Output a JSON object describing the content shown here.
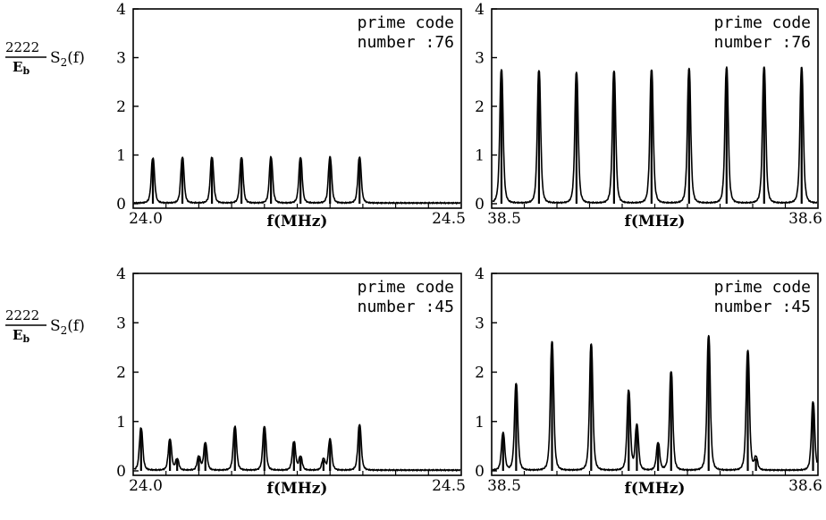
{
  "figure": {
    "ylabel": {
      "numerator": "2222",
      "denominator_main": "E",
      "denominator_sub": "b",
      "function_main": "S",
      "function_sub": "2",
      "function_arg": "(f)"
    }
  },
  "chart_data": [
    {
      "type": "line",
      "annotation": [
        "prime code",
        "number :76"
      ],
      "xlabel": "f(MHz)",
      "xlim": [
        24.0,
        24.5
      ],
      "xtick_labels": [
        "24.0",
        "24.5"
      ],
      "ylim": [
        0,
        4
      ],
      "yticks": [
        "0",
        "1",
        "2",
        "3",
        "4"
      ],
      "grid": false,
      "peaks": [
        {
          "x": 24.03,
          "y": 0.92
        },
        {
          "x": 24.075,
          "y": 0.93
        },
        {
          "x": 24.12,
          "y": 0.94
        },
        {
          "x": 24.165,
          "y": 0.93
        },
        {
          "x": 24.21,
          "y": 0.94
        },
        {
          "x": 24.255,
          "y": 0.93
        },
        {
          "x": 24.3,
          "y": 0.94
        },
        {
          "x": 24.345,
          "y": 0.94
        }
      ]
    },
    {
      "type": "line",
      "annotation": [
        "prime code",
        "number :76"
      ],
      "xlabel": "f(MHz)",
      "xlim": [
        38.5,
        38.6
      ],
      "xtick_labels": [
        "38.5",
        "38.6"
      ],
      "ylim": [
        0,
        4
      ],
      "yticks": [
        "0",
        "1",
        "2",
        "3",
        "4"
      ],
      "grid": false,
      "peaks": [
        {
          "x": 38.503,
          "y": 2.73
        },
        {
          "x": 38.5145,
          "y": 2.72
        },
        {
          "x": 38.526,
          "y": 2.68
        },
        {
          "x": 38.5375,
          "y": 2.71
        },
        {
          "x": 38.549,
          "y": 2.74
        },
        {
          "x": 38.5605,
          "y": 2.76
        },
        {
          "x": 38.572,
          "y": 2.78
        },
        {
          "x": 38.5835,
          "y": 2.79
        },
        {
          "x": 38.595,
          "y": 2.78
        }
      ]
    },
    {
      "type": "line",
      "annotation": [
        "prime code",
        "number :45"
      ],
      "xlabel": "f(MHz)",
      "xlim": [
        24.0,
        24.5
      ],
      "xtick_labels": [
        "24.0",
        "24.5"
      ],
      "ylim": [
        0,
        4
      ],
      "yticks": [
        "0",
        "1",
        "2",
        "3",
        "4"
      ],
      "grid": false,
      "peaks": [
        {
          "x": 24.012,
          "y": 0.85
        },
        {
          "x": 24.056,
          "y": 0.62
        },
        {
          "x": 24.067,
          "y": 0.22
        },
        {
          "x": 24.1,
          "y": 0.27
        },
        {
          "x": 24.11,
          "y": 0.55
        },
        {
          "x": 24.155,
          "y": 0.88
        },
        {
          "x": 24.2,
          "y": 0.88
        },
        {
          "x": 24.245,
          "y": 0.57
        },
        {
          "x": 24.255,
          "y": 0.27
        },
        {
          "x": 24.29,
          "y": 0.22
        },
        {
          "x": 24.3,
          "y": 0.62
        },
        {
          "x": 24.345,
          "y": 0.92
        }
      ]
    },
    {
      "type": "line",
      "annotation": [
        "prime code",
        "number :45"
      ],
      "xlabel": "f(MHz)",
      "xlim": [
        38.5,
        38.6
      ],
      "xtick_labels": [
        "38.5",
        "38.6"
      ],
      "ylim": [
        0,
        4
      ],
      "yticks": [
        "0",
        "1",
        "2",
        "3",
        "4"
      ],
      "grid": false,
      "peaks": [
        {
          "x": 38.5035,
          "y": 0.75
        },
        {
          "x": 38.5075,
          "y": 1.75
        },
        {
          "x": 38.5185,
          "y": 2.6
        },
        {
          "x": 38.5305,
          "y": 2.55
        },
        {
          "x": 38.542,
          "y": 1.6
        },
        {
          "x": 38.5445,
          "y": 0.9
        },
        {
          "x": 38.551,
          "y": 0.55
        },
        {
          "x": 38.555,
          "y": 2.0
        },
        {
          "x": 38.5665,
          "y": 2.72
        },
        {
          "x": 38.5785,
          "y": 2.42
        },
        {
          "x": 38.581,
          "y": 0.25
        },
        {
          "x": 38.5985,
          "y": 1.38
        }
      ]
    }
  ]
}
